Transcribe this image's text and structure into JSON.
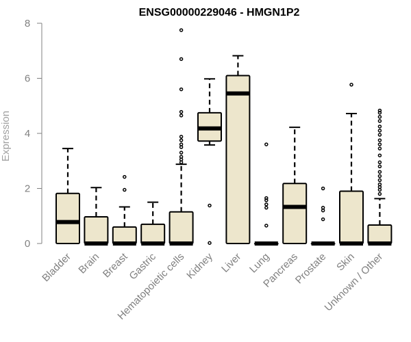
{
  "chart_data": {
    "type": "boxplot",
    "title": "ENSG00000229046 - HMGN1P2",
    "xlabel": "",
    "ylabel": "Expression",
    "ylim": [
      0,
      8
    ],
    "yticks": [
      0,
      2,
      4,
      6,
      8
    ],
    "grid": false,
    "legend": "none",
    "colors": {
      "box_fill": "#ede6cc",
      "box_stroke": "#000000",
      "axis": "#808080",
      "outlier": "#000000"
    },
    "categories": [
      "Bladder",
      "Brain",
      "Breast",
      "Gastric",
      "Hematopoietic cells",
      "Kidney",
      "Liver",
      "Lung",
      "Pancreas",
      "Prostate",
      "Skin",
      "Unknown / Other"
    ],
    "boxes": [
      {
        "category": "Bladder",
        "whisker_low": 0,
        "q1": 0,
        "median": 0.78,
        "q3": 1.82,
        "whisker_high": 3.45,
        "outliers": []
      },
      {
        "category": "Brain",
        "whisker_low": 0,
        "q1": 0,
        "median": 0,
        "q3": 0.97,
        "whisker_high": 2.03,
        "outliers": []
      },
      {
        "category": "Breast",
        "whisker_low": 0,
        "q1": 0,
        "median": 0,
        "q3": 0.6,
        "whisker_high": 1.33,
        "outliers": [
          1.95,
          2.42
        ]
      },
      {
        "category": "Gastric",
        "whisker_low": 0,
        "q1": 0,
        "median": 0,
        "q3": 0.7,
        "whisker_high": 1.5,
        "outliers": []
      },
      {
        "category": "Hematopoietic cells",
        "whisker_low": 0,
        "q1": 0,
        "median": 0,
        "q3": 1.15,
        "whisker_high": 2.88,
        "outliers": [
          2.95,
          3.05,
          3.15,
          3.3,
          3.5,
          3.6,
          3.75,
          3.88,
          4.65,
          4.78,
          5.6,
          6.7,
          7.75
        ]
      },
      {
        "category": "Kidney",
        "whisker_low": 3.58,
        "q1": 3.72,
        "median": 4.18,
        "q3": 4.75,
        "whisker_high": 5.98,
        "outliers": [
          1.38,
          0.02
        ]
      },
      {
        "category": "Liver",
        "whisker_low": 0,
        "q1": 0,
        "median": 5.45,
        "q3": 6.1,
        "whisker_high": 6.82,
        "outliers": []
      },
      {
        "category": "Lung",
        "whisker_low": 0,
        "q1": 0,
        "median": 0,
        "q3": 0,
        "whisker_high": 0,
        "outliers": [
          0.65,
          1.3,
          1.42,
          1.57,
          1.65,
          3.6
        ]
      },
      {
        "category": "Pancreas",
        "whisker_low": 0,
        "q1": 0,
        "median": 1.33,
        "q3": 2.18,
        "whisker_high": 4.22,
        "outliers": []
      },
      {
        "category": "Prostate",
        "whisker_low": 0,
        "q1": 0,
        "median": 0,
        "q3": 0,
        "whisker_high": 0,
        "outliers": [
          0.88,
          1.2,
          1.3,
          2.0
        ]
      },
      {
        "category": "Skin",
        "whisker_low": 0,
        "q1": 0,
        "median": 0,
        "q3": 1.9,
        "whisker_high": 4.72,
        "outliers": [
          5.77
        ]
      },
      {
        "category": "Unknown / Other",
        "whisker_low": 0,
        "q1": 0,
        "median": 0,
        "q3": 0.67,
        "whisker_high": 1.63,
        "outliers": [
          1.8,
          1.95,
          2.05,
          2.15,
          2.3,
          2.45,
          2.6,
          2.8,
          2.95,
          3.2,
          3.45,
          3.6,
          3.75,
          3.95,
          4.1,
          4.25,
          4.45,
          4.6,
          4.75,
          4.83
        ]
      }
    ]
  }
}
